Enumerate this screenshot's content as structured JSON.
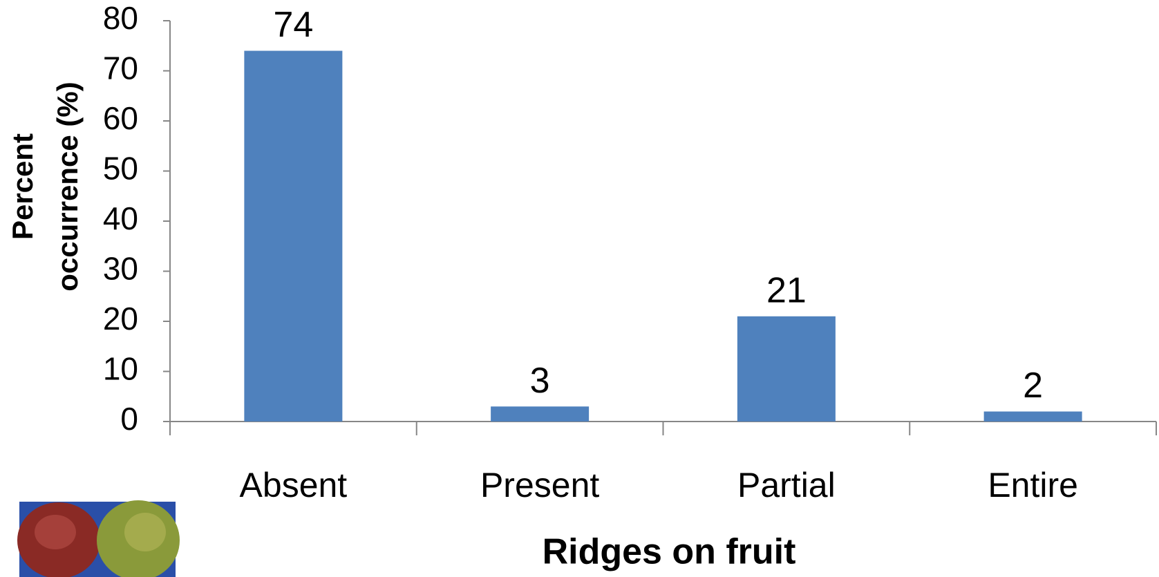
{
  "chart_data": {
    "type": "bar",
    "ylabel": [
      "Percent",
      "occurrence (%)"
    ],
    "xlabel": "Ridges on fruit",
    "categories": [
      "Absent",
      "Present",
      "Partial",
      "Entire"
    ],
    "values": [
      74,
      3,
      21,
      2
    ],
    "color": "#4f81bd",
    "ylim": [
      0,
      80
    ],
    "yticks": [
      0,
      10,
      20,
      30,
      40,
      50,
      60,
      70,
      80
    ],
    "grid": false
  }
}
